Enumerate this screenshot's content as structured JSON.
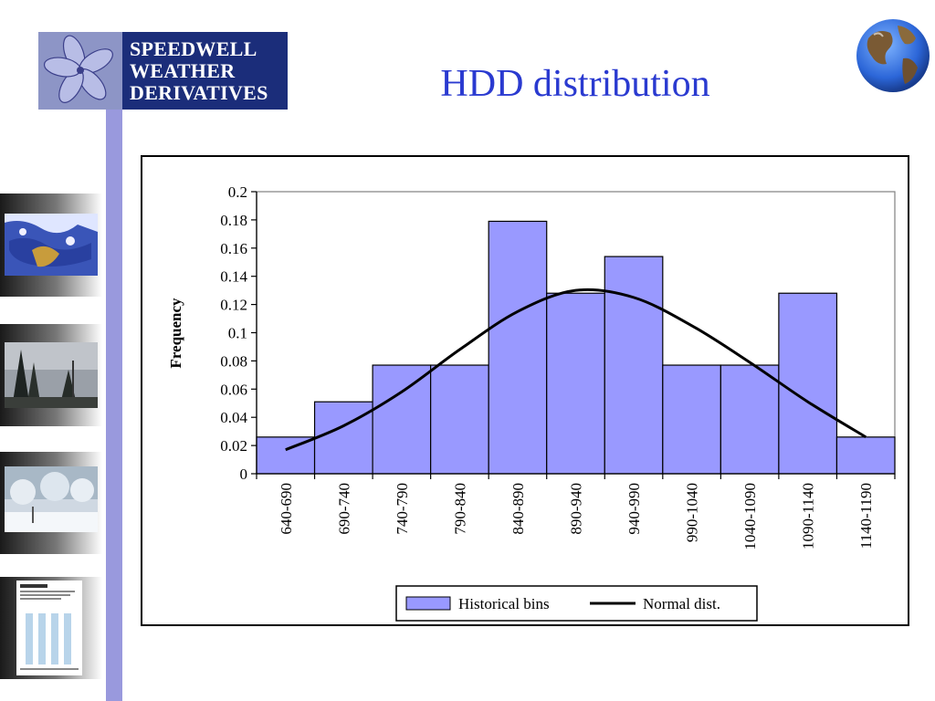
{
  "logo": {
    "lines": [
      "SPEEDWELL",
      "WEATHER",
      "DERIVATIVES"
    ]
  },
  "slide_title": "HDD distribution",
  "colors": {
    "title": "#2a3ad0",
    "bar_fill": "#9999ff",
    "bar_stroke": "#000000",
    "line": "#000000",
    "side_strip": "#9999dd"
  },
  "chart_data": {
    "type": "bar",
    "categories": [
      "640-690",
      "690-740",
      "740-790",
      "790-840",
      "840-890",
      "890-940",
      "940-990",
      "990-1040",
      "1040-1090",
      "1090-1140",
      "1140-1190"
    ],
    "series": [
      {
        "name": "Historical bins",
        "type": "bar",
        "values": [
          0.026,
          0.051,
          0.077,
          0.077,
          0.179,
          0.128,
          0.154,
          0.077,
          0.077,
          0.128,
          0.026
        ]
      },
      {
        "name": "Normal dist.",
        "type": "line",
        "values": [
          0.017,
          0.034,
          0.058,
          0.088,
          0.115,
          0.13,
          0.125,
          0.105,
          0.079,
          0.051,
          0.026
        ]
      }
    ],
    "ylabel": "Frequency",
    "xlabel": "",
    "ylim": [
      0,
      0.2
    ],
    "yticks": [
      "0",
      "0.02",
      "0.04",
      "0.06",
      "0.08",
      "0.1",
      "0.12",
      "0.14",
      "0.16",
      "0.18",
      "0.2"
    ],
    "legend_position": "bottom",
    "grid": false
  }
}
